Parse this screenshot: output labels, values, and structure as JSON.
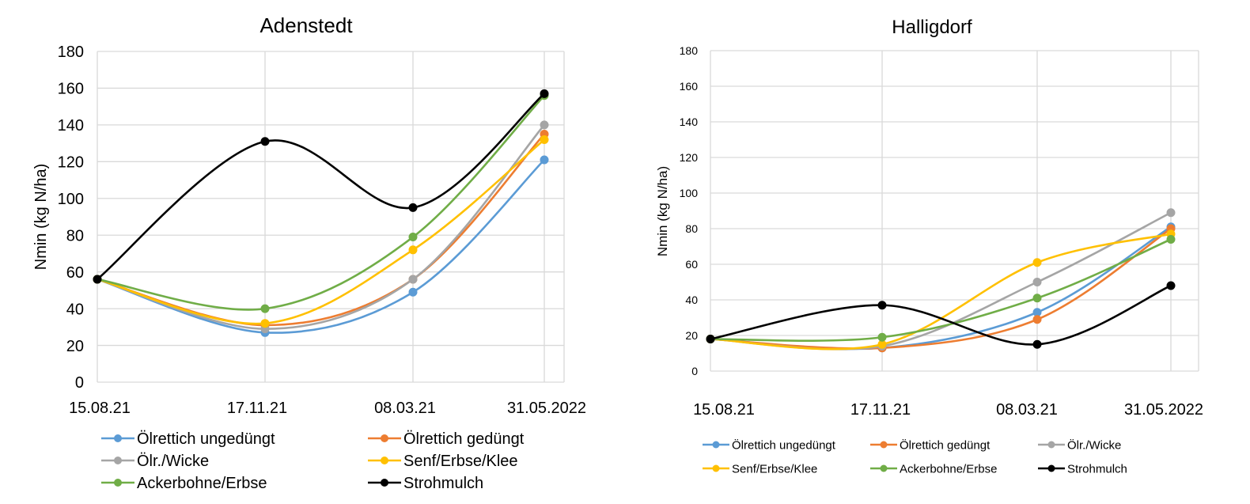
{
  "colors": {
    "oelrettich_ungeduengt": "#5b9bd5",
    "oelrettich_geduengt": "#ed7d31",
    "oelr_wicke": "#a5a5a5",
    "senf_erbse_klee": "#ffc000",
    "ackerbohne_erbse": "#70ad47",
    "strohmulch": "#000000",
    "grid": "#d9d9d9"
  },
  "chart_data": [
    {
      "type": "line",
      "title": "Adenstedt",
      "xlabel": "",
      "ylabel": "Nmin (kg N/ha)",
      "ylim": [
        0,
        180
      ],
      "yticks": [
        "0",
        "20",
        "40",
        "60",
        "80",
        "100",
        "120",
        "140",
        "160",
        "180"
      ],
      "x": [
        0,
        1,
        2,
        3
      ],
      "x_labels": [
        "15.08.21",
        "17.11.21",
        "08.03.21",
        "31.05.2022"
      ],
      "grid": true,
      "smooth": true,
      "legend_position": "bottom",
      "series": [
        {
          "name": "Ölrettich ungedüngt",
          "color_key": "oelrettich_ungeduengt",
          "values": [
            56,
            27,
            49,
            121
          ]
        },
        {
          "name": "Ölrettich gedüngt",
          "color_key": "oelrettich_geduengt",
          "values": [
            56,
            31,
            56,
            135
          ]
        },
        {
          "name": "Ölr./Wicke",
          "color_key": "oelr_wicke",
          "values": [
            56,
            29,
            56,
            140
          ]
        },
        {
          "name": "Senf/Erbse/Klee",
          "color_key": "senf_erbse_klee",
          "values": [
            56,
            32,
            72,
            132
          ]
        },
        {
          "name": "Ackerbohne/Erbse",
          "color_key": "ackerbohne_erbse",
          "values": [
            56,
            40,
            79,
            156
          ]
        },
        {
          "name": "Strohmulch",
          "color_key": "strohmulch",
          "values": [
            56,
            131,
            95,
            157
          ]
        }
      ]
    },
    {
      "type": "line",
      "title": "Halligdorf",
      "xlabel": "",
      "ylabel": "Nmin (kg N/ha)",
      "ylim": [
        0,
        180
      ],
      "yticks": [
        "0",
        "20",
        "40",
        "60",
        "80",
        "100",
        "120",
        "140",
        "160",
        "180"
      ],
      "x": [
        0,
        1,
        2,
        3
      ],
      "x_labels": [
        "15.08.21",
        "17.11.21",
        "08.03.21",
        "31.05.2022"
      ],
      "grid": true,
      "smooth": true,
      "legend_position": "bottom",
      "series": [
        {
          "name": "Ölrettich ungedüngt",
          "color_key": "oelrettich_ungeduengt",
          "values": [
            18,
            13,
            33,
            81
          ]
        },
        {
          "name": "Ölrettich gedüngt",
          "color_key": "oelrettich_geduengt",
          "values": [
            18,
            13,
            29,
            80
          ]
        },
        {
          "name": "Ölr./Wicke",
          "color_key": "oelr_wicke",
          "values": [
            18,
            14,
            50,
            89
          ]
        },
        {
          "name": "Senf/Erbse/Klee",
          "color_key": "senf_erbse_klee",
          "values": [
            18,
            15,
            61,
            77
          ]
        },
        {
          "name": "Ackerbohne/Erbse",
          "color_key": "ackerbohne_erbse",
          "values": [
            18,
            19,
            41,
            74
          ]
        },
        {
          "name": "Strohmulch",
          "color_key": "strohmulch",
          "values": [
            18,
            37,
            15,
            48
          ]
        }
      ]
    }
  ]
}
